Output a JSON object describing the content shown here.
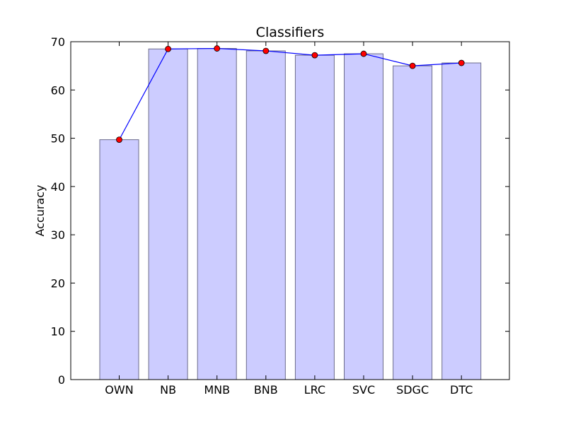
{
  "chart_data": {
    "type": "bar",
    "title": "Classifiers",
    "xlabel": "",
    "ylabel": "Accuracy",
    "ylim": [
      0,
      70
    ],
    "yticks": [
      0,
      10,
      20,
      30,
      40,
      50,
      60,
      70
    ],
    "categories": [
      "OWN",
      "NB",
      "MNB",
      "BNB",
      "LRC",
      "SVC",
      "SDGC",
      "DTC"
    ],
    "values": [
      49.7,
      68.5,
      68.6,
      68.1,
      67.2,
      67.5,
      65.0,
      65.6
    ],
    "overlay_line": {
      "type": "line",
      "marker": "circle",
      "values": [
        49.7,
        68.5,
        68.6,
        68.1,
        67.2,
        67.5,
        65.0,
        65.6
      ]
    },
    "grid": false,
    "legend": "none"
  },
  "colors": {
    "bar_fill": "#ccccff",
    "bar_edge": "#6b6b8a",
    "line": "#0000ff",
    "marker_fill": "#ff0000",
    "marker_edge": "#000000",
    "axes": "#000000"
  }
}
